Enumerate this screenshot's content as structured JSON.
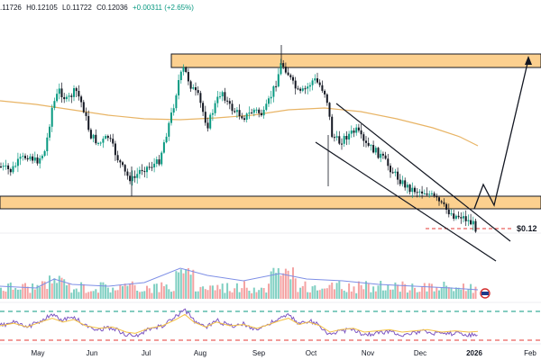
{
  "header": {
    "open": ".11726",
    "high": "H0.12105",
    "low": "L0.11722",
    "close": "C0.12036",
    "change": "+0.00311 (+2.65%)"
  },
  "colors": {
    "up": "#089981",
    "down": "#131722",
    "zone_fill": "#fcd08f",
    "zone_stroke": "#131722",
    "ma": "#e8b465",
    "vol_up": "#7fcfc2",
    "vol_down": "#f4a3a3",
    "vol_ma": "#7e8fe6",
    "osc": "#7e57c2",
    "osc_signal": "#f5c242",
    "level_line": "#e53935",
    "upper_dash": "#089981",
    "lower_dash": "#e53935"
  },
  "chart_data": {
    "type": "candlestick",
    "price_label": "$0.12",
    "x_ticks": [
      "May",
      "Jun",
      "Jul",
      "Aug",
      "Sep",
      "Oct",
      "Nov",
      "Dec",
      "2026",
      "Feb"
    ],
    "resistance_zone": "horizontal supply zone across the highs (late Jul – Sep)",
    "support_zone": "horizontal demand zone spanning the chart",
    "channel": "descending channel from October to January",
    "projection": "arrow pointing up from the channel breakout to the resistance zone",
    "indicators": [
      "moving average",
      "volume",
      "volume moving average",
      "oscillator",
      "signal line"
    ]
  }
}
